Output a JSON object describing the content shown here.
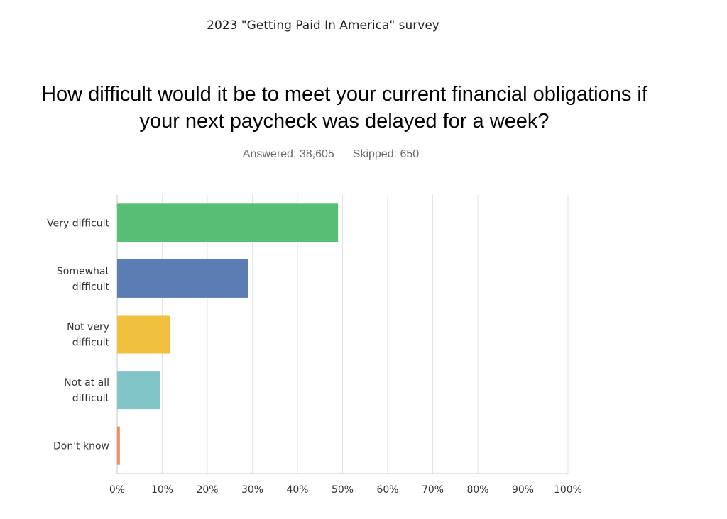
{
  "supertitle": "2023 \"Getting Paid In America\" survey",
  "question": {
    "line1": "How difficult would it be to meet your current financial obligations if",
    "line2": "your next paycheck was delayed for a week?"
  },
  "stats": {
    "answered": "Answered: 38,605",
    "skipped": "Skipped: 650"
  },
  "colors": {
    "grid": "#e3e3e3",
    "axis": "#c8c8c8"
  },
  "chart_data": {
    "type": "bar",
    "orientation": "horizontal",
    "categories": [
      [
        "Very difficult"
      ],
      [
        "Somewhat",
        "difficult"
      ],
      [
        "Not very",
        "difficult"
      ],
      [
        "Not at all",
        "difficult"
      ],
      [
        "Don't know"
      ]
    ],
    "values": [
      49,
      29,
      11.7,
      9.5,
      0.6
    ],
    "colors": [
      "#57bf75",
      "#5b7db3",
      "#f0c03e",
      "#82c5c8",
      "#ef8d5a"
    ],
    "xlim": [
      0,
      100
    ],
    "xticks": [
      "0%",
      "10%",
      "20%",
      "30%",
      "40%",
      "50%",
      "60%",
      "70%",
      "80%",
      "90%",
      "100%"
    ],
    "grid": true
  }
}
